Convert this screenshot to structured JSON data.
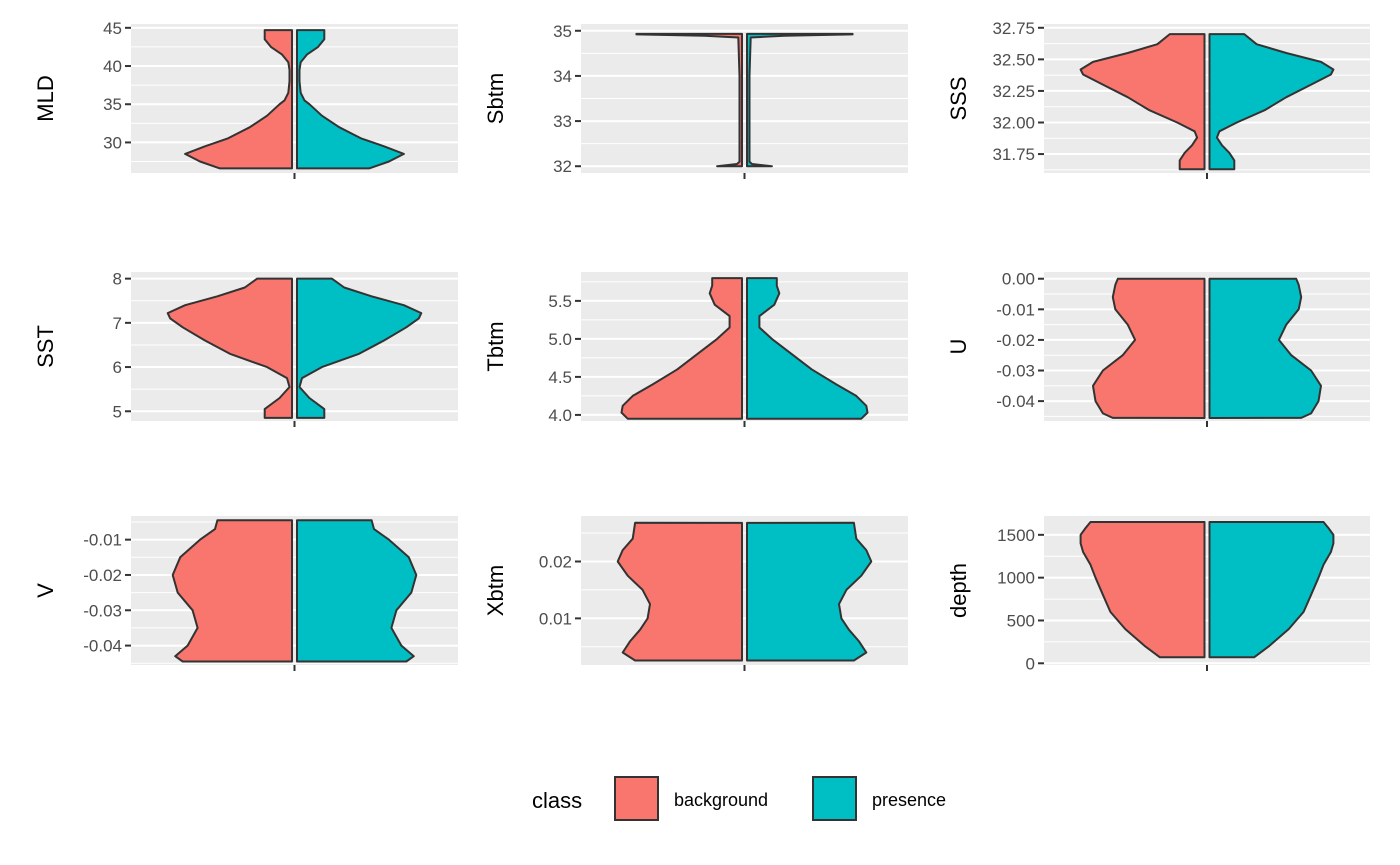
{
  "chart_data": [
    {
      "type": "violin",
      "ylabel": "MLD",
      "ylim": [
        26.0,
        45.5
      ],
      "ticks": [
        30,
        35,
        40,
        45
      ],
      "tick_labels": [
        "30",
        "35",
        "40",
        "45"
      ],
      "data_range": [
        26.6,
        44.7
      ],
      "violin": {
        "y": [
          26.6,
          27.5,
          28.5,
          29.5,
          30.5,
          32,
          33.5,
          35,
          35.5,
          36.5,
          38,
          39.5,
          40.5,
          41.5,
          42.5,
          43.5,
          44.2,
          44.7
        ],
        "w": [
          0.58,
          0.74,
          0.86,
          0.7,
          0.52,
          0.34,
          0.2,
          0.1,
          0.06,
          0.03,
          0.02,
          0.02,
          0.03,
          0.08,
          0.17,
          0.22,
          0.22,
          0.22
        ]
      }
    },
    {
      "type": "violin",
      "ylabel": "Sbtm",
      "ylim": [
        31.85,
        35.15
      ],
      "ticks": [
        32,
        33,
        34,
        35
      ],
      "tick_labels": [
        "32",
        "33",
        "34",
        "35"
      ],
      "data_range": [
        32.0,
        34.93
      ],
      "violin": {
        "y": [
          32.0,
          32.05,
          32.1,
          33.0,
          34.0,
          34.85,
          34.89,
          34.92,
          34.93
        ],
        "w": [
          0.2,
          0.04,
          0.02,
          0.02,
          0.02,
          0.03,
          0.3,
          0.85,
          0.85
        ]
      }
    },
    {
      "type": "violin",
      "ylabel": "SSS",
      "ylim": [
        31.6,
        32.78
      ],
      "ticks": [
        31.75,
        32.0,
        32.25,
        32.5,
        32.75
      ],
      "tick_labels": [
        "31.75",
        "32.00",
        "32.25",
        "32.50",
        "32.75"
      ],
      "data_range": [
        31.63,
        32.7
      ],
      "violin": {
        "y": [
          31.63,
          31.7,
          31.76,
          31.82,
          31.88,
          31.93,
          32.0,
          32.1,
          32.2,
          32.3,
          32.38,
          32.42,
          32.48,
          32.55,
          32.62,
          32.7
        ],
        "w": [
          0.2,
          0.2,
          0.16,
          0.1,
          0.06,
          0.08,
          0.22,
          0.45,
          0.62,
          0.82,
          0.98,
          1.0,
          0.9,
          0.62,
          0.38,
          0.28
        ]
      }
    },
    {
      "type": "violin",
      "ylabel": "SST",
      "ylim": [
        4.78,
        8.15
      ],
      "ticks": [
        5,
        6,
        7,
        8
      ],
      "tick_labels": [
        "5",
        "6",
        "7",
        "8"
      ],
      "data_range": [
        4.85,
        8.0
      ],
      "violin": {
        "y": [
          4.85,
          5.05,
          5.3,
          5.55,
          5.75,
          6.0,
          6.3,
          6.6,
          6.9,
          7.1,
          7.22,
          7.4,
          7.6,
          7.8,
          8.0
        ],
        "w": [
          0.22,
          0.22,
          0.1,
          0.02,
          0.04,
          0.2,
          0.5,
          0.7,
          0.88,
          0.98,
          1.0,
          0.86,
          0.6,
          0.38,
          0.28
        ]
      }
    },
    {
      "type": "violin",
      "ylabel": "Tbtm",
      "ylim": [
        3.92,
        5.88
      ],
      "ticks": [
        4.0,
        4.5,
        5.0,
        5.5
      ],
      "tick_labels": [
        "4.0",
        "4.5",
        "5.0",
        "5.5"
      ],
      "data_range": [
        3.95,
        5.8
      ],
      "violin": {
        "y": [
          3.95,
          4.03,
          4.12,
          4.25,
          4.4,
          4.6,
          4.8,
          5.0,
          5.15,
          5.3,
          5.45,
          5.6,
          5.7,
          5.8
        ],
        "w": [
          0.92,
          0.97,
          0.96,
          0.88,
          0.72,
          0.52,
          0.36,
          0.2,
          0.1,
          0.1,
          0.22,
          0.26,
          0.24,
          0.24
        ]
      }
    },
    {
      "type": "violin",
      "ylabel": "U",
      "ylim": [
        -0.0465,
        0.0022
      ],
      "ticks": [
        -0.04,
        -0.03,
        -0.02,
        -0.01,
        0.0
      ],
      "tick_labels": [
        "-0.04",
        "-0.03",
        "-0.02",
        "-0.01",
        "0.00"
      ],
      "data_range": [
        -0.0455,
        0.0
      ],
      "violin": {
        "y": [
          -0.0455,
          -0.044,
          -0.04,
          -0.035,
          -0.03,
          -0.025,
          -0.02,
          -0.015,
          -0.01,
          -0.006,
          -0.002,
          0.0
        ],
        "w": [
          0.74,
          0.82,
          0.88,
          0.9,
          0.82,
          0.66,
          0.56,
          0.62,
          0.72,
          0.74,
          0.72,
          0.7
        ]
      }
    },
    {
      "type": "violin",
      "ylabel": "V",
      "ylim": [
        -0.0455,
        -0.0033
      ],
      "ticks": [
        -0.04,
        -0.03,
        -0.02,
        -0.01
      ],
      "tick_labels": [
        "-0.04",
        "-0.03",
        "-0.02",
        "-0.01"
      ],
      "data_range": [
        -0.0445,
        -0.0045
      ],
      "violin": {
        "y": [
          -0.0445,
          -0.043,
          -0.04,
          -0.035,
          -0.03,
          -0.025,
          -0.02,
          -0.015,
          -0.01,
          -0.007,
          -0.0045
        ],
        "w": [
          0.88,
          0.94,
          0.84,
          0.76,
          0.8,
          0.92,
          0.96,
          0.9,
          0.74,
          0.62,
          0.6
        ]
      }
    },
    {
      "type": "violin",
      "ylabel": "Xbtm",
      "ylim": [
        0.0018,
        0.028
      ],
      "ticks": [
        0.01,
        0.02
      ],
      "tick_labels": [
        "0.01",
        "0.02"
      ],
      "data_range": [
        0.0026,
        0.0268
      ],
      "violin": {
        "y": [
          0.0026,
          0.004,
          0.006,
          0.008,
          0.01,
          0.0125,
          0.015,
          0.0175,
          0.02,
          0.022,
          0.024,
          0.0268
        ],
        "w": [
          0.86,
          0.96,
          0.9,
          0.82,
          0.76,
          0.74,
          0.8,
          0.92,
          1.0,
          0.96,
          0.88,
          0.86
        ]
      }
    },
    {
      "type": "violin",
      "ylabel": "depth",
      "ylim": [
        -20,
        1720
      ],
      "ticks": [
        0,
        500,
        1000,
        1500
      ],
      "tick_labels": [
        "0",
        "500",
        "1000",
        "1500"
      ],
      "data_range": [
        70,
        1650
      ],
      "violin": {
        "y": [
          70,
          200,
          400,
          600,
          800,
          1000,
          1150,
          1300,
          1400,
          1500,
          1580,
          1650
        ],
        "w": [
          0.36,
          0.48,
          0.64,
          0.76,
          0.82,
          0.88,
          0.92,
          0.98,
          1.0,
          1.0,
          0.96,
          0.92
        ]
      }
    }
  ],
  "legend": {
    "title": "class",
    "items": [
      {
        "label": "background",
        "color": "#F8766D"
      },
      {
        "label": "presence",
        "color": "#00BFC4"
      }
    ]
  },
  "style": {
    "panel_bg": "#EBEBEB",
    "grid": "#FFFFFF",
    "outline": "#333333",
    "tick_text": "#4D4D4D"
  }
}
